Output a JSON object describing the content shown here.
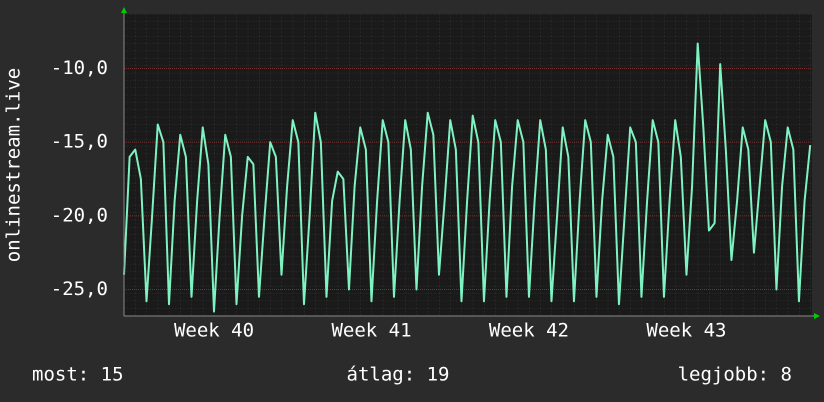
{
  "chart_data": {
    "type": "line",
    "y_label": "onlinestream.live",
    "xlim": [
      0,
      30.58
    ],
    "xticks": [
      {
        "value": 4,
        "label": "Week 40"
      },
      {
        "value": 11,
        "label": "Week 41"
      },
      {
        "value": 18,
        "label": "Week 42"
      },
      {
        "value": 25,
        "label": "Week 43"
      }
    ],
    "ylim": [
      -26.8,
      -6.3
    ],
    "yticks": [
      {
        "value": -10,
        "label": "-10,0"
      },
      {
        "value": -15,
        "label": "-15,0"
      },
      {
        "value": -20,
        "label": "-20,0"
      },
      {
        "value": -25,
        "label": "-25,0"
      }
    ],
    "grid": true,
    "x": [
      0,
      0.25,
      0.5,
      0.75,
      1,
      1.25,
      1.5,
      1.75,
      2,
      2.25,
      2.5,
      2.75,
      3,
      3.25,
      3.5,
      3.75,
      4,
      4.25,
      4.5,
      4.75,
      5,
      5.25,
      5.5,
      5.75,
      6,
      6.25,
      6.5,
      6.75,
      7,
      7.25,
      7.5,
      7.75,
      8,
      8.25,
      8.5,
      8.75,
      9,
      9.25,
      9.5,
      9.75,
      10,
      10.25,
      10.5,
      10.75,
      11,
      11.25,
      11.5,
      11.75,
      12,
      12.25,
      12.5,
      12.75,
      13,
      13.25,
      13.5,
      13.75,
      14,
      14.25,
      14.5,
      14.75,
      15,
      15.25,
      15.5,
      15.75,
      16,
      16.25,
      16.5,
      16.75,
      17,
      17.25,
      17.5,
      17.75,
      18,
      18.25,
      18.5,
      18.75,
      19,
      19.25,
      19.5,
      19.75,
      20,
      20.25,
      20.5,
      20.75,
      21,
      21.25,
      21.5,
      21.75,
      22,
      22.25,
      22.5,
      22.75,
      23,
      23.25,
      23.5,
      23.75,
      24,
      24.25,
      24.5,
      24.75,
      25,
      25.25,
      25.5,
      25.75,
      26,
      26.25,
      26.5,
      26.75,
      27,
      27.25,
      27.5,
      27.75,
      28,
      28.25,
      28.5,
      28.75,
      29,
      29.25,
      29.5,
      29.75,
      30,
      30.25,
      30.5
    ],
    "series": [
      {
        "name": "onlinestream.live",
        "color": "#7ff2c2",
        "values": [
          -24,
          -16,
          -15.5,
          -17.5,
          -25.8,
          -20,
          -13.8,
          -15,
          -26,
          -19,
          -14.5,
          -16,
          -25.5,
          -19,
          -14,
          -16.5,
          -26.5,
          -20,
          -14.5,
          -16,
          -26,
          -20,
          -16,
          -16.5,
          -25.5,
          -20,
          -15,
          -16,
          -24,
          -18,
          -13.5,
          -15,
          -26,
          -20,
          -13,
          -15,
          -25.5,
          -19,
          -17,
          -17.5,
          -25,
          -18,
          -14,
          -15.5,
          -25.8,
          -19,
          -13.5,
          -15,
          -25.5,
          -19,
          -13.5,
          -15.5,
          -25,
          -18,
          -13,
          -14.5,
          -24,
          -19,
          -13.5,
          -15.5,
          -25.8,
          -19,
          -13.2,
          -15,
          -25.8,
          -19,
          -13.5,
          -15,
          -25.5,
          -18,
          -13.5,
          -15,
          -25.5,
          -19,
          -13.5,
          -15.5,
          -25.8,
          -20,
          -14,
          -16,
          -25.8,
          -19,
          -13.5,
          -15,
          -25.5,
          -19,
          -14.5,
          -16,
          -26,
          -20,
          -14,
          -15,
          -25.5,
          -19,
          -13.5,
          -15,
          -25.5,
          -19,
          -13.5,
          -16,
          -24,
          -18,
          -8.3,
          -14,
          -21,
          -20.5,
          -9.7,
          -15.5,
          -23,
          -19,
          -14,
          -15.5,
          -22.5,
          -18,
          -13.5,
          -15,
          -25,
          -18,
          -14,
          -15.5,
          -25.8,
          -19,
          -15.2
        ]
      }
    ],
    "footer": [
      "most: 15",
      "átlag: 19",
      "legjobb: 8"
    ]
  }
}
